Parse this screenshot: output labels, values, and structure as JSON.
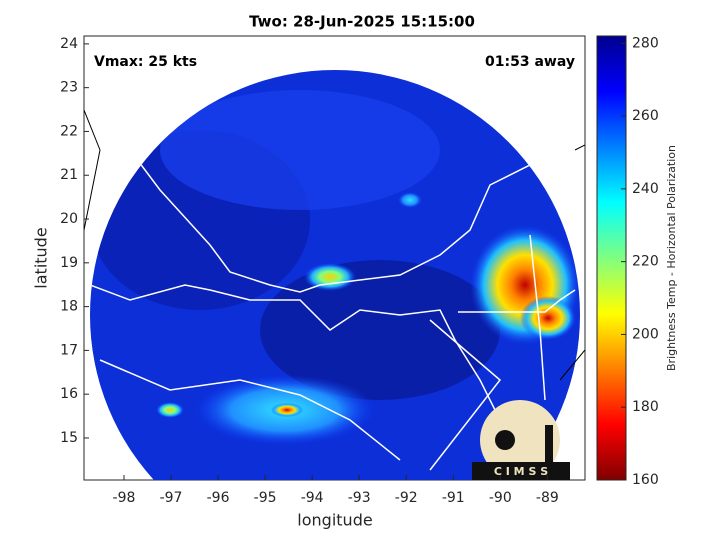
{
  "chart_data": {
    "type": "map",
    "title": "Two: 28-Jun-2025 15:15:00",
    "annotations": [
      "Vmax: 25 kts",
      "01:53 away"
    ],
    "xlabel": "longitude",
    "ylabel": "latitude",
    "xlim": [
      -98.85,
      -88.2
    ],
    "xticks": [
      -98,
      -97,
      -96,
      -95,
      -94,
      -93,
      -92,
      -91,
      -90,
      -89
    ],
    "ylim": [
      14.04,
      24.18
    ],
    "yticks": [
      15,
      16,
      17,
      18,
      19,
      20,
      21,
      22,
      23,
      24
    ],
    "colorbar_label": "Brightness Temp - Horizontal Polarization",
    "clim": [
      160,
      282
    ],
    "cticks": [
      160,
      180,
      200,
      220,
      240,
      260,
      280
    ],
    "colormap": [
      "#800000",
      "#ff0000",
      "#ff8000",
      "#ffff00",
      "#80ff80",
      "#00ffff",
      "#0080ff",
      "#0000ff",
      "#00008f"
    ],
    "logo_text": "C I M S S"
  }
}
